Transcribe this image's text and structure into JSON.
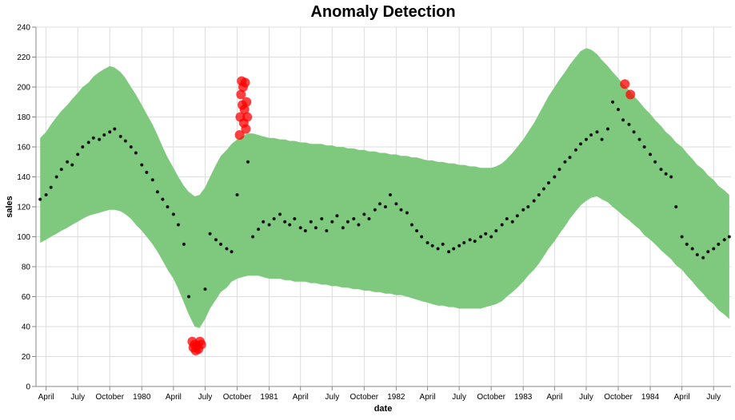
{
  "chart_data": {
    "type": "scatter",
    "title": "Anomaly Detection",
    "x_label": "date",
    "y_label": "sales",
    "xlim": [
      "1979-03-03",
      "1984-08-20"
    ],
    "xticks": [
      {
        "value": "1979-04-01",
        "label": "April"
      },
      {
        "value": "1979-07-01",
        "label": "July"
      },
      {
        "value": "1979-10-01",
        "label": "October"
      },
      {
        "value": "1980-01-01",
        "label": "1980"
      },
      {
        "value": "1980-04-01",
        "label": "April"
      },
      {
        "value": "1980-07-01",
        "label": "July"
      },
      {
        "value": "1980-10-01",
        "label": "October"
      },
      {
        "value": "1981-01-01",
        "label": "1981"
      },
      {
        "value": "1981-04-01",
        "label": "April"
      },
      {
        "value": "1981-07-01",
        "label": "July"
      },
      {
        "value": "1981-10-01",
        "label": "October"
      },
      {
        "value": "1982-01-01",
        "label": "1982"
      },
      {
        "value": "1982-04-01",
        "label": "April"
      },
      {
        "value": "1982-07-01",
        "label": "July"
      },
      {
        "value": "1982-10-01",
        "label": "October"
      },
      {
        "value": "1983-01-01",
        "label": "1983"
      },
      {
        "value": "1983-04-01",
        "label": "April"
      },
      {
        "value": "1983-07-01",
        "label": "July"
      },
      {
        "value": "1983-10-01",
        "label": "October"
      },
      {
        "value": "1984-01-01",
        "label": "1984"
      },
      {
        "value": "1984-04-01",
        "label": "April"
      },
      {
        "value": "1984-07-01",
        "label": "July"
      }
    ],
    "ylim": [
      0,
      240
    ],
    "yticks": [
      0,
      20,
      40,
      60,
      80,
      100,
      120,
      140,
      160,
      180,
      200,
      220,
      240
    ],
    "grid": true,
    "x": [
      "1979-03-15",
      "1979-04-01",
      "1979-04-15",
      "1979-05-01",
      "1979-05-15",
      "1979-06-01",
      "1979-06-15",
      "1979-07-01",
      "1979-07-15",
      "1979-08-01",
      "1979-08-15",
      "1979-09-01",
      "1979-09-15",
      "1979-10-01",
      "1979-10-15",
      "1979-11-01",
      "1979-11-15",
      "1979-12-01",
      "1979-12-15",
      "1980-01-01",
      "1980-01-15",
      "1980-02-01",
      "1980-02-15",
      "1980-03-01",
      "1980-03-15",
      "1980-04-01",
      "1980-04-15",
      "1980-05-01",
      "1980-05-15",
      "1980-06-01",
      "1980-06-15",
      "1980-07-01",
      "1980-07-15",
      "1980-08-01",
      "1980-08-15",
      "1980-09-01",
      "1980-09-15",
      "1980-10-01",
      "1980-10-15",
      "1980-11-01",
      "1980-11-15",
      "1980-12-01",
      "1980-12-15",
      "1981-01-01",
      "1981-01-15",
      "1981-02-01",
      "1981-02-15",
      "1981-03-01",
      "1981-03-15",
      "1981-04-01",
      "1981-04-15",
      "1981-05-01",
      "1981-05-15",
      "1981-06-01",
      "1981-06-15",
      "1981-07-01",
      "1981-07-15",
      "1981-08-01",
      "1981-08-15",
      "1981-09-01",
      "1981-09-15",
      "1981-10-01",
      "1981-10-15",
      "1981-11-01",
      "1981-11-15",
      "1981-12-01",
      "1981-12-15",
      "1982-01-01",
      "1982-01-15",
      "1982-02-01",
      "1982-02-15",
      "1982-03-01",
      "1982-03-15",
      "1982-04-01",
      "1982-04-15",
      "1982-05-01",
      "1982-05-15",
      "1982-06-01",
      "1982-06-15",
      "1982-07-01",
      "1982-07-15",
      "1982-08-01",
      "1982-08-15",
      "1982-09-01",
      "1982-09-15",
      "1982-10-01",
      "1982-10-15",
      "1982-11-01",
      "1982-11-15",
      "1982-12-01",
      "1982-12-15",
      "1983-01-01",
      "1983-01-15",
      "1983-02-01",
      "1983-02-15",
      "1983-03-01",
      "1983-03-15",
      "1983-04-01",
      "1983-04-15",
      "1983-05-01",
      "1983-05-15",
      "1983-06-01",
      "1983-06-15",
      "1983-07-01",
      "1983-07-15",
      "1983-08-01",
      "1983-08-15",
      "1983-09-01",
      "1983-09-15",
      "1983-10-01",
      "1983-10-15",
      "1983-11-01",
      "1983-11-15",
      "1983-12-01",
      "1983-12-15",
      "1984-01-01",
      "1984-01-15",
      "1984-02-01",
      "1984-02-15",
      "1984-03-01",
      "1984-03-15",
      "1984-04-01",
      "1984-04-15",
      "1984-05-01",
      "1984-05-15",
      "1984-06-01",
      "1984-06-15",
      "1984-07-01",
      "1984-07-15",
      "1984-08-01",
      "1984-08-15"
    ],
    "series": [
      {
        "color": "#111111",
        "values": [
          125,
          128,
          133,
          140,
          145,
          150,
          148,
          155,
          160,
          163,
          166,
          165,
          168,
          170,
          172,
          167,
          164,
          160,
          156,
          148,
          143,
          138,
          130,
          125,
          120,
          115,
          108,
          95,
          60,
          null,
          null,
          65,
          102,
          98,
          95,
          92,
          90,
          128,
          null,
          150,
          100,
          105,
          110,
          108,
          112,
          115,
          110,
          108,
          112,
          106,
          104,
          110,
          106,
          112,
          104,
          110,
          114,
          106,
          110,
          112,
          108,
          115,
          112,
          118,
          122,
          120,
          128,
          122,
          118,
          116,
          108,
          104,
          100,
          96,
          94,
          92,
          95,
          90,
          92,
          94,
          96,
          98,
          97,
          100,
          102,
          100,
          104,
          108,
          112,
          110,
          114,
          118,
          120,
          124,
          128,
          132,
          136,
          140,
          145,
          150,
          153,
          158,
          162,
          165,
          168,
          170,
          165,
          172,
          190,
          185,
          178,
          175,
          170,
          165,
          160,
          155,
          150,
          145,
          142,
          140,
          120,
          100,
          95,
          92,
          88,
          86,
          90,
          92,
          95,
          98,
          100
        ]
      }
    ],
    "band": {
      "color": "#7fc97f",
      "upper": [
        166,
        170,
        175,
        180,
        184,
        188,
        192,
        196,
        200,
        203,
        207,
        210,
        212,
        214,
        213,
        210,
        206,
        200,
        195,
        188,
        182,
        175,
        168,
        160,
        153,
        146,
        140,
        134,
        130,
        127,
        128,
        133,
        140,
        148,
        154,
        158,
        162,
        165,
        167,
        169,
        169,
        168,
        167,
        166,
        166,
        165,
        165,
        164,
        164,
        163,
        163,
        162,
        162,
        162,
        161,
        161,
        160,
        160,
        159,
        159,
        158,
        158,
        157,
        157,
        156,
        156,
        155,
        155,
        154,
        154,
        153,
        153,
        152,
        151,
        151,
        150,
        150,
        149,
        149,
        148,
        148,
        147,
        147,
        146,
        146,
        146,
        147,
        149,
        152,
        156,
        160,
        165,
        170,
        176,
        182,
        188,
        194,
        200,
        205,
        210,
        215,
        220,
        224,
        226,
        225,
        222,
        218,
        214,
        210,
        206,
        202,
        198,
        194,
        190,
        186,
        182,
        178,
        174,
        170,
        167,
        163,
        160,
        156,
        152,
        148,
        145,
        141,
        138,
        134,
        131,
        128
      ],
      "lower": [
        96,
        98,
        100,
        102,
        104,
        106,
        108,
        110,
        112,
        114,
        115,
        116,
        117,
        118,
        118,
        117,
        115,
        112,
        108,
        104,
        100,
        95,
        90,
        84,
        78,
        72,
        65,
        56,
        48,
        40,
        39,
        45,
        52,
        58,
        63,
        66,
        70,
        72,
        73,
        74,
        74,
        74,
        73,
        72,
        72,
        72,
        71,
        71,
        70,
        70,
        70,
        69,
        69,
        68,
        68,
        67,
        67,
        66,
        66,
        65,
        65,
        64,
        64,
        63,
        63,
        62,
        62,
        61,
        61,
        60,
        59,
        58,
        57,
        56,
        55,
        54,
        54,
        53,
        53,
        52,
        52,
        52,
        52,
        52,
        53,
        54,
        55,
        57,
        60,
        63,
        66,
        70,
        74,
        78,
        82,
        87,
        92,
        97,
        102,
        107,
        112,
        117,
        121,
        124,
        126,
        127,
        125,
        123,
        120,
        117,
        114,
        111,
        108,
        105,
        101,
        98,
        95,
        91,
        88,
        85,
        81,
        78,
        74,
        70,
        66,
        62,
        58,
        55,
        51,
        48,
        45
      ]
    },
    "anomalies": {
      "color": "#ff0000",
      "x": [
        "1980-05-25",
        "1980-05-28",
        "1980-06-01",
        "1980-06-04",
        "1980-06-08",
        "1980-06-12",
        "1980-06-16",
        "1980-06-20",
        "1980-10-08",
        "1980-10-10",
        "1980-10-12",
        "1980-10-14",
        "1980-10-16",
        "1980-10-18",
        "1980-10-20",
        "1980-10-22",
        "1980-10-24",
        "1980-10-26",
        "1980-10-28",
        "1980-10-30",
        "1983-10-20",
        "1983-11-05"
      ],
      "values": [
        30,
        26,
        28,
        24,
        27,
        25,
        30,
        28,
        168,
        180,
        195,
        204,
        188,
        200,
        176,
        185,
        203,
        172,
        190,
        180,
        202,
        195
      ]
    }
  }
}
